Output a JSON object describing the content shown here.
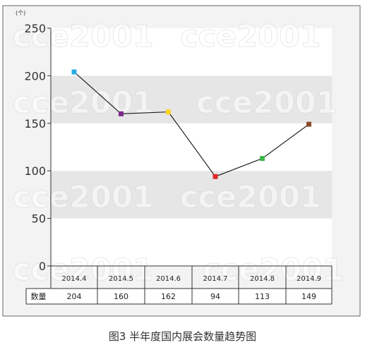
{
  "chart_data": {
    "type": "line",
    "unit": "(个)",
    "categories": [
      "2014.4",
      "2014.5",
      "2014.6",
      "2014.7",
      "2014.8",
      "2014.9"
    ],
    "series": [
      {
        "values": [
          204,
          160,
          162,
          94,
          113,
          149
        ]
      }
    ],
    "table_row_label": "数量",
    "value_labels": [
      "204",
      "160",
      "162",
      "94",
      "113",
      "149"
    ],
    "point_colors": [
      "#29abe2",
      "#7b2a8c",
      "#ffd21e",
      "#e02a2a",
      "#3cb54a",
      "#8b4a2b"
    ],
    "yticks": [
      0,
      50,
      100,
      150,
      200,
      250
    ],
    "ylim": [
      0,
      250
    ],
    "grid": "alternating horizontal bands",
    "band_colors": [
      "#e6e6e6",
      "#ffffff"
    ],
    "background_color": "#f3f3f3",
    "line_color": "#111111",
    "watermark": "cce2001",
    "caption": "图3  半年度国内展会数量趋势图"
  }
}
